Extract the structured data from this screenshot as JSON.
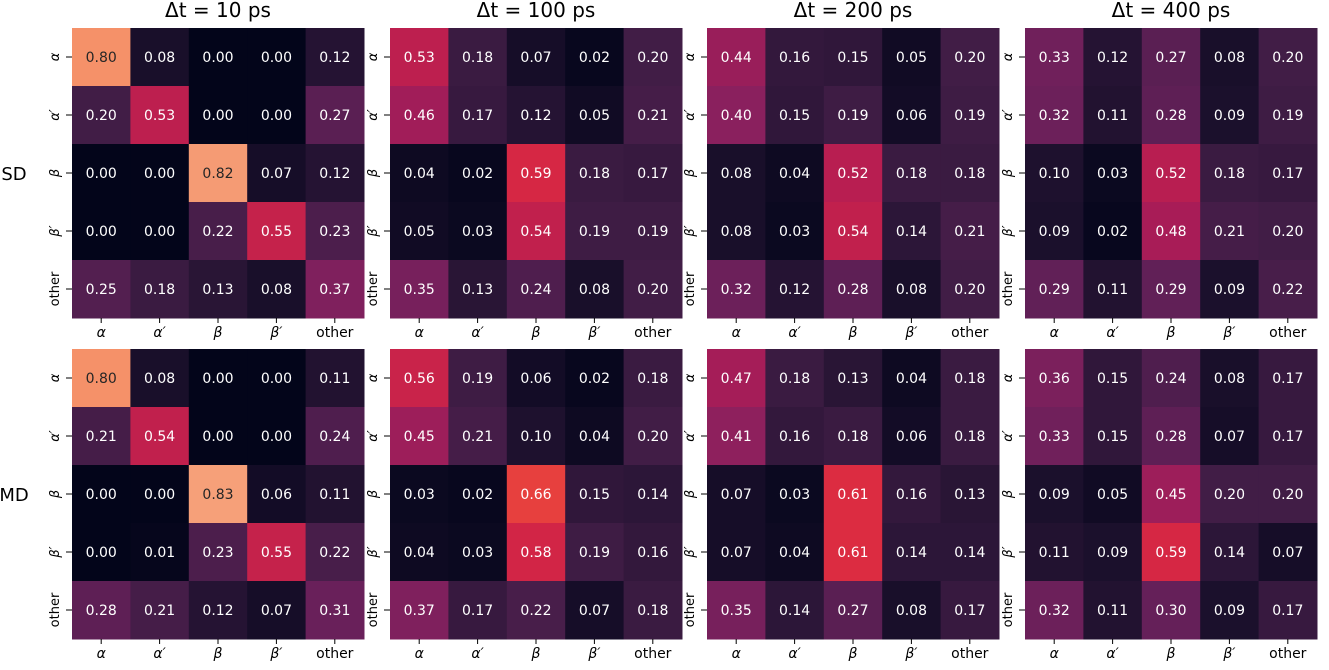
{
  "chart_data": {
    "type": "heatmap",
    "column_titles": [
      "Δt = 10 ps",
      "Δt = 100 ps",
      "Δt = 200 ps",
      "Δt = 400 ps"
    ],
    "row_titles": [
      "SD",
      "MD"
    ],
    "categories": [
      "α",
      "α′",
      "β",
      "β′",
      "other"
    ],
    "colormap": "rocket",
    "vmin": 0,
    "vmax": 1,
    "panels": [
      {
        "row": "SD",
        "column": "Δt = 10 ps",
        "values": [
          [
            0.8,
            0.08,
            0.0,
            0.0,
            0.12
          ],
          [
            0.2,
            0.53,
            0.0,
            0.0,
            0.27
          ],
          [
            0.0,
            0.0,
            0.82,
            0.07,
            0.12
          ],
          [
            0.0,
            0.0,
            0.22,
            0.55,
            0.23
          ],
          [
            0.25,
            0.18,
            0.13,
            0.08,
            0.37
          ]
        ]
      },
      {
        "row": "SD",
        "column": "Δt = 100 ps",
        "values": [
          [
            0.53,
            0.18,
            0.07,
            0.02,
            0.2
          ],
          [
            0.46,
            0.17,
            0.12,
            0.05,
            0.21
          ],
          [
            0.04,
            0.02,
            0.59,
            0.18,
            0.17
          ],
          [
            0.05,
            0.03,
            0.54,
            0.19,
            0.19
          ],
          [
            0.35,
            0.13,
            0.24,
            0.08,
            0.2
          ]
        ]
      },
      {
        "row": "SD",
        "column": "Δt = 200 ps",
        "values": [
          [
            0.44,
            0.16,
            0.15,
            0.05,
            0.2
          ],
          [
            0.4,
            0.15,
            0.19,
            0.06,
            0.19
          ],
          [
            0.08,
            0.04,
            0.52,
            0.18,
            0.18
          ],
          [
            0.08,
            0.03,
            0.54,
            0.14,
            0.21
          ],
          [
            0.32,
            0.12,
            0.28,
            0.08,
            0.2
          ]
        ]
      },
      {
        "row": "SD",
        "column": "Δt = 400 ps",
        "values": [
          [
            0.33,
            0.12,
            0.27,
            0.08,
            0.2
          ],
          [
            0.32,
            0.11,
            0.28,
            0.09,
            0.19
          ],
          [
            0.1,
            0.03,
            0.52,
            0.18,
            0.17
          ],
          [
            0.09,
            0.02,
            0.48,
            0.21,
            0.2
          ],
          [
            0.29,
            0.11,
            0.29,
            0.09,
            0.22
          ]
        ]
      },
      {
        "row": "MD",
        "column": "Δt = 10 ps",
        "values": [
          [
            0.8,
            0.08,
            0.0,
            0.0,
            0.11
          ],
          [
            0.21,
            0.54,
            0.0,
            0.0,
            0.24
          ],
          [
            0.0,
            0.0,
            0.83,
            0.06,
            0.11
          ],
          [
            0.0,
            0.01,
            0.23,
            0.55,
            0.22
          ],
          [
            0.28,
            0.21,
            0.12,
            0.07,
            0.31
          ]
        ]
      },
      {
        "row": "MD",
        "column": "Δt = 100 ps",
        "values": [
          [
            0.56,
            0.19,
            0.06,
            0.02,
            0.18
          ],
          [
            0.45,
            0.21,
            0.1,
            0.04,
            0.2
          ],
          [
            0.03,
            0.02,
            0.66,
            0.15,
            0.14
          ],
          [
            0.04,
            0.03,
            0.58,
            0.19,
            0.16
          ],
          [
            0.37,
            0.17,
            0.22,
            0.07,
            0.18
          ]
        ]
      },
      {
        "row": "MD",
        "column": "Δt = 200 ps",
        "values": [
          [
            0.47,
            0.18,
            0.13,
            0.04,
            0.18
          ],
          [
            0.41,
            0.16,
            0.18,
            0.06,
            0.18
          ],
          [
            0.07,
            0.03,
            0.61,
            0.16,
            0.13
          ],
          [
            0.07,
            0.04,
            0.61,
            0.14,
            0.14
          ],
          [
            0.35,
            0.14,
            0.27,
            0.08,
            0.17
          ]
        ]
      },
      {
        "row": "MD",
        "column": "Δt = 400 ps",
        "values": [
          [
            0.36,
            0.15,
            0.24,
            0.08,
            0.17
          ],
          [
            0.33,
            0.15,
            0.28,
            0.07,
            0.17
          ],
          [
            0.09,
            0.05,
            0.45,
            0.2,
            0.2
          ],
          [
            0.11,
            0.09,
            0.59,
            0.14,
            0.07
          ],
          [
            0.32,
            0.11,
            0.3,
            0.09,
            0.17
          ]
        ]
      }
    ]
  }
}
